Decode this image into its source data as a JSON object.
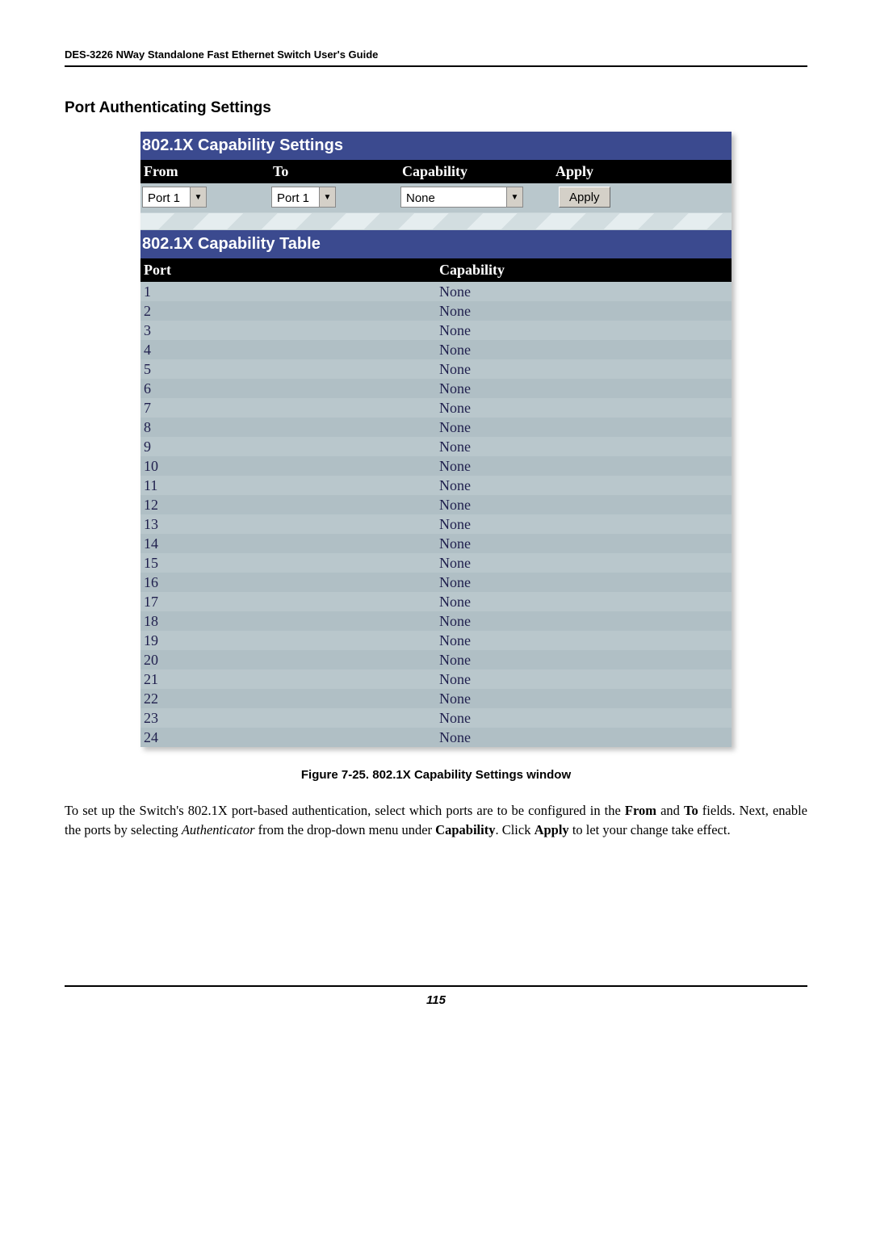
{
  "doc_header": "DES-3226 NWay Standalone Fast Ethernet Switch User's Guide",
  "section_title": "Port Authenticating Settings",
  "settings_banner": "802.1X Capability Settings",
  "settings_headers": {
    "from": "From",
    "to": "To",
    "capability": "Capability",
    "apply": "Apply"
  },
  "settings_values": {
    "from": "Port 1",
    "to": "Port 1",
    "capability": "None",
    "apply_btn": "Apply"
  },
  "table_banner": "802.1X Capability Table",
  "table_headers": {
    "port": "Port",
    "capability": "Capability"
  },
  "table_rows": [
    {
      "port": "1",
      "cap": "None"
    },
    {
      "port": "2",
      "cap": "None"
    },
    {
      "port": "3",
      "cap": "None"
    },
    {
      "port": "4",
      "cap": "None"
    },
    {
      "port": "5",
      "cap": "None"
    },
    {
      "port": "6",
      "cap": "None"
    },
    {
      "port": "7",
      "cap": "None"
    },
    {
      "port": "8",
      "cap": "None"
    },
    {
      "port": "9",
      "cap": "None"
    },
    {
      "port": "10",
      "cap": "None"
    },
    {
      "port": "11",
      "cap": "None"
    },
    {
      "port": "12",
      "cap": "None"
    },
    {
      "port": "13",
      "cap": "None"
    },
    {
      "port": "14",
      "cap": "None"
    },
    {
      "port": "15",
      "cap": "None"
    },
    {
      "port": "16",
      "cap": "None"
    },
    {
      "port": "17",
      "cap": "None"
    },
    {
      "port": "18",
      "cap": "None"
    },
    {
      "port": "19",
      "cap": "None"
    },
    {
      "port": "20",
      "cap": "None"
    },
    {
      "port": "21",
      "cap": "None"
    },
    {
      "port": "22",
      "cap": "None"
    },
    {
      "port": "23",
      "cap": "None"
    },
    {
      "port": "24",
      "cap": "None"
    }
  ],
  "row_colors": {
    "a": "#b9c7cc",
    "b": "#b0bfc5"
  },
  "figure_caption": "Figure 7-25.  802.1X Capability Settings window",
  "body": {
    "p1a": "To set up the Switch's 802.1X port-based authentication, select which ports are to be configured in the ",
    "from": "From",
    "p1b": " and ",
    "to": "To",
    "p1c": " fields. Next, enable the ports by selecting ",
    "auth": "Authenticator",
    "p1d": " from the drop-down menu under ",
    "capability": "Capability",
    "p1e": ". Click ",
    "apply": "Apply",
    "p1f": " to let your change take effect."
  },
  "page_number": "115"
}
